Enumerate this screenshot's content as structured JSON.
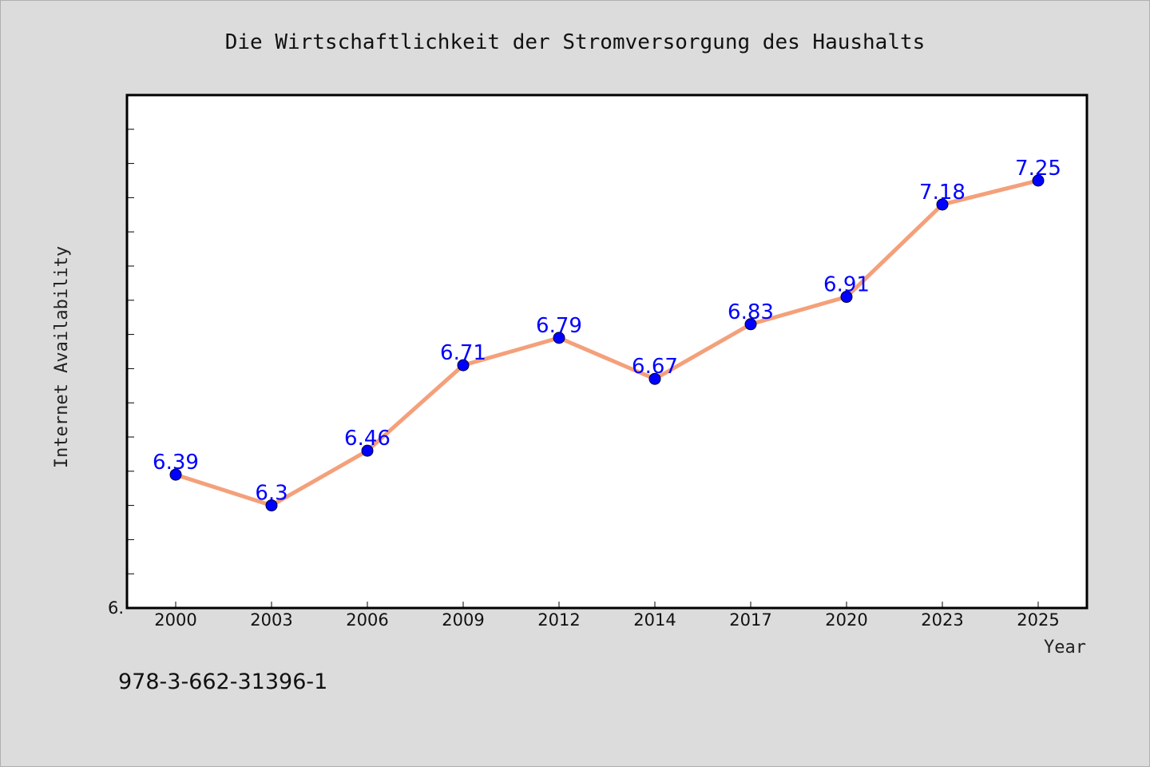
{
  "chart_data": {
    "type": "line",
    "title": "Die Wirtschaftlichkeit der Stromversorgung des Haushalts",
    "xlabel": "Year",
    "ylabel": "Internet Availability",
    "categories": [
      "2000",
      "2003",
      "2006",
      "2009",
      "2012",
      "2014",
      "2017",
      "2020",
      "2023",
      "2025"
    ],
    "series": [
      {
        "values": [
          6.39,
          6.3,
          6.46,
          6.71,
          6.79,
          6.67,
          6.83,
          6.91,
          7.18,
          7.25
        ],
        "labels": [
          "6.39",
          "6.3",
          "6.46",
          "6.71",
          "6.79",
          "6.67",
          "6.83",
          "6.91",
          "7.18",
          "7.25"
        ]
      }
    ],
    "ylim": [
      6.0,
      7.5
    ],
    "y_tick_labels": [
      "6."
    ],
    "grid": false,
    "line_color": "#f4a07a",
    "marker_color": "#0000ff",
    "label_color": "#0000ff"
  },
  "footer": {
    "isbn": "978-3-662-31396-1"
  }
}
